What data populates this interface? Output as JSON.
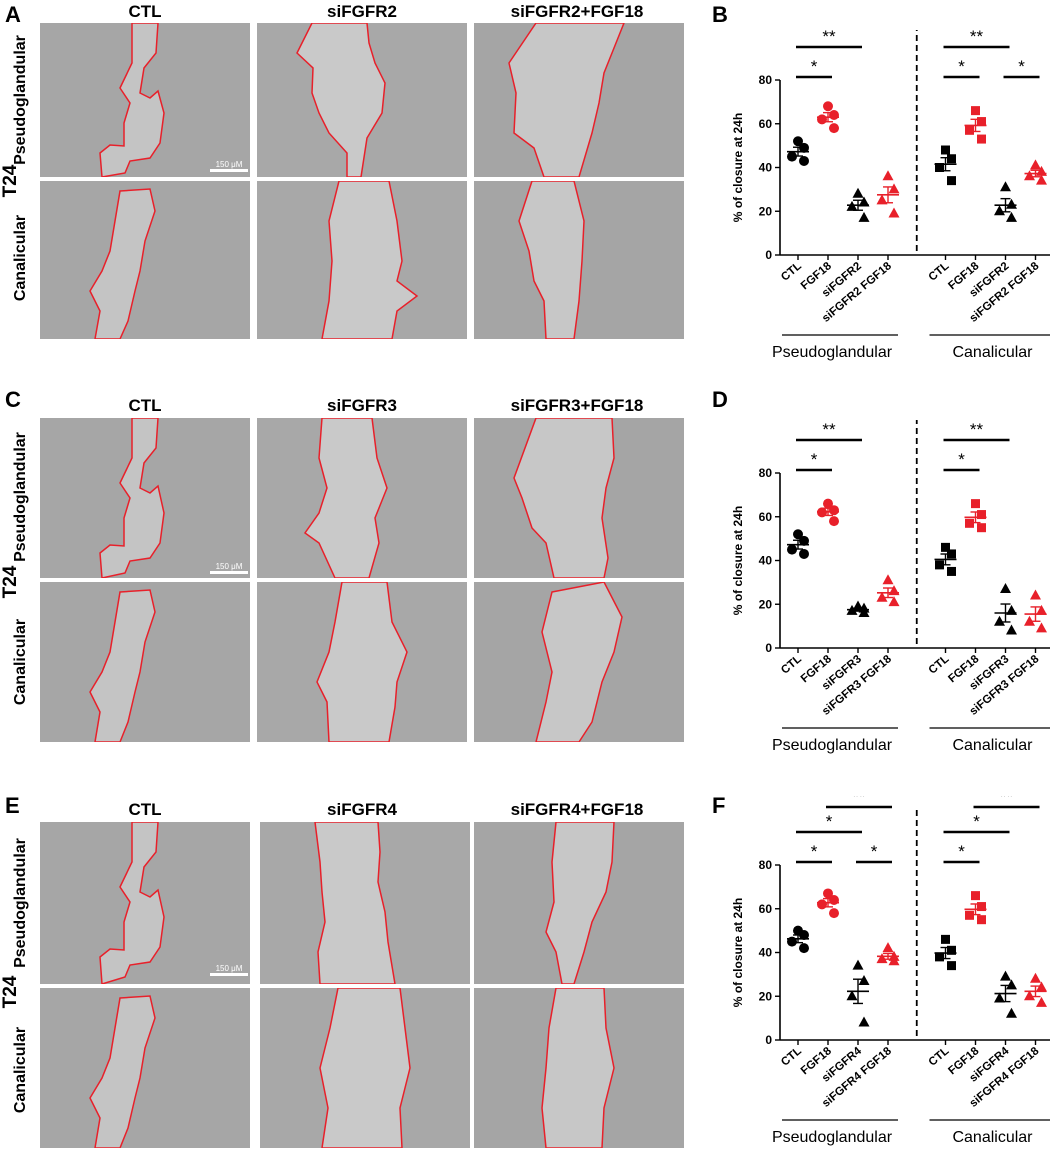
{
  "figure": {
    "rows": [
      "Pseudoglandular",
      "Canalicular"
    ],
    "cell_line": "T24",
    "scale_bar_label": "150 μM",
    "panels": [
      {
        "id": "A",
        "columns": [
          "CTL",
          "siFGFR2",
          "siFGFR2+FGF18"
        ]
      },
      {
        "id": "C",
        "columns": [
          "CTL",
          "siFGFR3",
          "siFGFR3+FGF18"
        ]
      },
      {
        "id": "E",
        "columns": [
          "CTL",
          "siFGFR4",
          "siFGFR4+FGF18"
        ]
      }
    ]
  },
  "colors": {
    "black": "#000000",
    "red": "#e8202a",
    "wound_outline": "#e8202a",
    "micrograph_bg": "#a9a9a9"
  },
  "chart_data": [
    {
      "id": "B",
      "type": "scatter",
      "ylabel": "% of closure at 24h",
      "ylim": [
        0,
        80
      ],
      "yticks": [
        0,
        20,
        40,
        60,
        80
      ],
      "groups": [
        {
          "label": "Pseudoglandular",
          "marker": "circle"
        },
        {
          "label": "Canalicular",
          "marker": "square"
        }
      ],
      "categories": [
        "CTL",
        "FGF18",
        "siFGFR2",
        "siFGFR2 FGF18"
      ],
      "category_colors": [
        "black",
        "red",
        "black",
        "red"
      ],
      "category_markers": [
        "group",
        "group",
        "triangle",
        "triangle"
      ],
      "values": [
        [
          [
            52,
            49,
            45,
            43
          ],
          [
            68,
            64,
            62,
            58
          ],
          [
            28,
            24,
            22,
            17
          ],
          [
            36,
            30,
            25,
            19
          ]
        ],
        [
          [
            48,
            44,
            40,
            34
          ],
          [
            66,
            61,
            57,
            53
          ],
          [
            31,
            23,
            20,
            17
          ],
          [
            41,
            38,
            36,
            34
          ]
        ]
      ],
      "significance": [
        [
          {
            "a": 0,
            "b": 1,
            "label": "*"
          },
          {
            "a": 0,
            "b": 2,
            "label": "**"
          },
          {
            "a": 1,
            "b": 3,
            "label": "*"
          }
        ],
        [
          {
            "a": 0,
            "b": 1,
            "label": "*"
          },
          {
            "a": 0,
            "b": 2,
            "label": "**"
          },
          {
            "a": 2,
            "b": 3,
            "label": "*"
          },
          {
            "a": 1,
            "b": 3,
            "label": "*"
          }
        ]
      ]
    },
    {
      "id": "D",
      "type": "scatter",
      "ylabel": "% of closure at 24h",
      "ylim": [
        0,
        80
      ],
      "yticks": [
        0,
        20,
        40,
        60,
        80
      ],
      "groups": [
        {
          "label": "Pseudoglandular",
          "marker": "circle"
        },
        {
          "label": "Canalicular",
          "marker": "square"
        }
      ],
      "categories": [
        "CTL",
        "FGF18",
        "siFGFR3",
        "siFGFR3 FGF18"
      ],
      "category_colors": [
        "black",
        "red",
        "black",
        "red"
      ],
      "category_markers": [
        "group",
        "group",
        "triangle",
        "triangle"
      ],
      "values": [
        [
          [
            52,
            49,
            45,
            43
          ],
          [
            66,
            63,
            62,
            58
          ],
          [
            19,
            18,
            17,
            16
          ],
          [
            31,
            26,
            23,
            21
          ]
        ],
        [
          [
            46,
            43,
            38,
            35
          ],
          [
            66,
            61,
            57,
            55
          ],
          [
            27,
            17,
            12,
            8
          ],
          [
            24,
            17,
            12,
            9
          ]
        ]
      ],
      "significance": [
        [
          {
            "a": 0,
            "b": 1,
            "label": "*"
          },
          {
            "a": 0,
            "b": 2,
            "label": "**"
          },
          {
            "a": 1,
            "b": 3,
            "label": "**"
          }
        ],
        [
          {
            "a": 0,
            "b": 1,
            "label": "*"
          },
          {
            "a": 0,
            "b": 2,
            "label": "**"
          },
          {
            "a": 1,
            "b": 3,
            "label": "*"
          }
        ]
      ]
    },
    {
      "id": "F",
      "type": "scatter",
      "ylabel": "% of closure at 24h",
      "ylim": [
        0,
        80
      ],
      "yticks": [
        0,
        20,
        40,
        60,
        80
      ],
      "groups": [
        {
          "label": "Pseudoglandular",
          "marker": "circle"
        },
        {
          "label": "Canalicular",
          "marker": "square"
        }
      ],
      "categories": [
        "CTL",
        "FGF18",
        "siFGFR4",
        "siFGFR4 FGF18"
      ],
      "category_colors": [
        "black",
        "red",
        "black",
        "red"
      ],
      "category_markers": [
        "group",
        "group",
        "triangle",
        "triangle"
      ],
      "values": [
        [
          [
            50,
            48,
            45,
            42
          ],
          [
            67,
            64,
            62,
            58
          ],
          [
            34,
            27,
            20,
            8
          ],
          [
            42,
            38,
            37,
            36
          ]
        ],
        [
          [
            46,
            41,
            38,
            34
          ],
          [
            66,
            61,
            57,
            55
          ],
          [
            29,
            25,
            19,
            12
          ],
          [
            28,
            24,
            20,
            17
          ]
        ]
      ],
      "significance": [
        [
          {
            "a": 0,
            "b": 1,
            "label": "*"
          },
          {
            "a": 0,
            "b": 2,
            "label": "*"
          },
          {
            "a": 2,
            "b": 3,
            "label": "*"
          },
          {
            "a": 1,
            "b": 3,
            "label": "**"
          }
        ],
        [
          {
            "a": 0,
            "b": 1,
            "label": "*"
          },
          {
            "a": 0,
            "b": 2,
            "label": "*"
          },
          {
            "a": 1,
            "b": 3,
            "label": "**"
          }
        ]
      ]
    }
  ]
}
